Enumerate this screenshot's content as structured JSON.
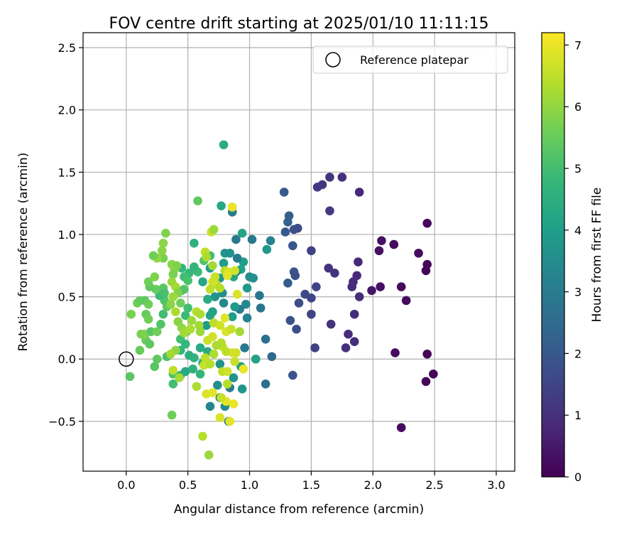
{
  "chart_data": {
    "type": "scatter",
    "title": "FOV centre drift starting at 2025/01/10 11:11:15",
    "xlabel": "Angular distance from reference (arcmin)",
    "ylabel": "Rotation from reference (arcmin)",
    "xlim": [
      -0.35,
      3.15
    ],
    "ylim": [
      -0.9,
      2.62
    ],
    "xticks": [
      0.0,
      0.5,
      1.0,
      1.5,
      2.0,
      2.5,
      3.0
    ],
    "xtick_labels": [
      "0.0",
      "0.5",
      "1.0",
      "1.5",
      "2.0",
      "2.5",
      "3.0"
    ],
    "yticks": [
      -0.5,
      0.0,
      0.5,
      1.0,
      1.5,
      2.0,
      2.5
    ],
    "ytick_labels": [
      "−0.5",
      "0.0",
      "0.5",
      "1.0",
      "1.5",
      "2.0",
      "2.5"
    ],
    "grid": true,
    "legend": {
      "placement": "top-right",
      "entries": [
        {
          "label": "Reference platepar",
          "marker": "open-circle"
        }
      ]
    },
    "reference_point": {
      "x": 0.0,
      "y": 0.0
    },
    "colorbar": {
      "label": "Hours from first FF file",
      "range": [
        0,
        7.2
      ],
      "ticks": [
        0,
        1,
        2,
        3,
        4,
        5,
        6,
        7
      ],
      "tick_labels": [
        "0",
        "1",
        "2",
        "3",
        "4",
        "5",
        "6",
        "7"
      ],
      "colormap": "viridis",
      "colormap_stops": [
        "#440154",
        "#482878",
        "#3e4989",
        "#31688e",
        "#26828e",
        "#1f9e89",
        "#35b779",
        "#6ece58",
        "#b5de2b",
        "#fde725"
      ]
    },
    "points": [
      {
        "x": 2.44,
        "y": 1.09,
        "h": 0.1
      },
      {
        "x": 2.44,
        "y": 0.76,
        "h": 0.1
      },
      {
        "x": 2.43,
        "y": 0.71,
        "h": 0.1
      },
      {
        "x": 2.37,
        "y": 0.85,
        "h": 0.2
      },
      {
        "x": 2.27,
        "y": 0.47,
        "h": 0.2
      },
      {
        "x": 2.23,
        "y": 0.58,
        "h": 0.2
      },
      {
        "x": 2.17,
        "y": 0.92,
        "h": 0.2
      },
      {
        "x": 2.07,
        "y": 0.95,
        "h": 0.3
      },
      {
        "x": 2.05,
        "y": 0.87,
        "h": 0.3
      },
      {
        "x": 2.06,
        "y": 0.58,
        "h": 0.3
      },
      {
        "x": 1.99,
        "y": 0.55,
        "h": 0.4
      },
      {
        "x": 2.18,
        "y": 0.05,
        "h": 0.2
      },
      {
        "x": 2.44,
        "y": 0.04,
        "h": 0.1
      },
      {
        "x": 2.43,
        "y": -0.18,
        "h": 0.1
      },
      {
        "x": 2.49,
        "y": -0.12,
        "h": 0.1
      },
      {
        "x": 2.23,
        "y": -0.55,
        "h": 0.2
      },
      {
        "x": 1.89,
        "y": 1.34,
        "h": 0.8
      },
      {
        "x": 1.75,
        "y": 1.46,
        "h": 1.0
      },
      {
        "x": 1.65,
        "y": 1.46,
        "h": 1.1
      },
      {
        "x": 1.59,
        "y": 1.4,
        "h": 1.2
      },
      {
        "x": 1.55,
        "y": 1.38,
        "h": 1.2
      },
      {
        "x": 1.65,
        "y": 1.19,
        "h": 1.2
      },
      {
        "x": 1.88,
        "y": 0.78,
        "h": 0.8
      },
      {
        "x": 1.87,
        "y": 0.67,
        "h": 0.8
      },
      {
        "x": 1.84,
        "y": 0.62,
        "h": 0.9
      },
      {
        "x": 1.83,
        "y": 0.58,
        "h": 0.9
      },
      {
        "x": 1.89,
        "y": 0.5,
        "h": 0.9
      },
      {
        "x": 1.64,
        "y": 0.73,
        "h": 1.1
      },
      {
        "x": 1.69,
        "y": 0.69,
        "h": 1.1
      },
      {
        "x": 1.5,
        "y": 0.87,
        "h": 1.4
      },
      {
        "x": 1.54,
        "y": 0.58,
        "h": 1.4
      },
      {
        "x": 1.5,
        "y": 0.49,
        "h": 1.5
      },
      {
        "x": 1.45,
        "y": 0.52,
        "h": 1.6
      },
      {
        "x": 1.4,
        "y": 0.45,
        "h": 1.7
      },
      {
        "x": 1.5,
        "y": 0.36,
        "h": 1.5
      },
      {
        "x": 1.85,
        "y": 0.36,
        "h": 0.9
      },
      {
        "x": 1.66,
        "y": 0.28,
        "h": 1.1
      },
      {
        "x": 1.8,
        "y": 0.2,
        "h": 0.9
      },
      {
        "x": 1.85,
        "y": 0.14,
        "h": 0.9
      },
      {
        "x": 1.78,
        "y": 0.09,
        "h": 1.0
      },
      {
        "x": 1.53,
        "y": 0.09,
        "h": 1.4
      },
      {
        "x": 1.38,
        "y": 0.24,
        "h": 1.7
      },
      {
        "x": 1.33,
        "y": 0.31,
        "h": 1.8
      },
      {
        "x": 1.35,
        "y": -0.13,
        "h": 1.9
      },
      {
        "x": 1.28,
        "y": 1.34,
        "h": 2.0
      },
      {
        "x": 1.32,
        "y": 1.15,
        "h": 2.2
      },
      {
        "x": 1.31,
        "y": 1.1,
        "h": 2.3
      },
      {
        "x": 1.36,
        "y": 1.04,
        "h": 1.8
      },
      {
        "x": 1.39,
        "y": 1.05,
        "h": 1.7
      },
      {
        "x": 1.29,
        "y": 1.02,
        "h": 2.0
      },
      {
        "x": 1.35,
        "y": 0.91,
        "h": 1.9
      },
      {
        "x": 1.36,
        "y": 0.7,
        "h": 1.9
      },
      {
        "x": 1.37,
        "y": 0.67,
        "h": 1.8
      },
      {
        "x": 1.31,
        "y": 0.61,
        "h": 2.1
      },
      {
        "x": 1.18,
        "y": 0.02,
        "h": 2.4
      },
      {
        "x": 1.13,
        "y": 0.16,
        "h": 2.6
      },
      {
        "x": 1.13,
        "y": -0.2,
        "h": 2.6
      },
      {
        "x": 1.08,
        "y": 0.51,
        "h": 2.8
      },
      {
        "x": 1.09,
        "y": 0.41,
        "h": 2.8
      },
      {
        "x": 1.02,
        "y": 0.96,
        "h": 2.9
      },
      {
        "x": 1.17,
        "y": 0.95,
        "h": 3.2
      },
      {
        "x": 1.14,
        "y": 0.88,
        "h": 3.8
      },
      {
        "x": 1.0,
        "y": 0.66,
        "h": 3.5
      },
      {
        "x": 1.03,
        "y": 0.65,
        "h": 3.6
      },
      {
        "x": 0.98,
        "y": 0.57,
        "h": 3.9
      },
      {
        "x": 0.97,
        "y": 0.44,
        "h": 3.4
      },
      {
        "x": 0.98,
        "y": 0.33,
        "h": 3.2
      },
      {
        "x": 0.95,
        "y": 0.78,
        "h": 4.0
      },
      {
        "x": 0.93,
        "y": 0.72,
        "h": 4.1
      },
      {
        "x": 0.9,
        "y": 0.81,
        "h": 3.0
      },
      {
        "x": 0.94,
        "y": 1.01,
        "h": 4.2
      },
      {
        "x": 0.89,
        "y": 0.96,
        "h": 2.9
      },
      {
        "x": 0.89,
        "y": 0.7,
        "h": 3.3
      },
      {
        "x": 0.87,
        "y": 0.66,
        "h": 4.3
      },
      {
        "x": 0.92,
        "y": 0.4,
        "h": 3.0
      },
      {
        "x": 0.88,
        "y": 0.42,
        "h": 3.9
      },
      {
        "x": 0.86,
        "y": 0.34,
        "h": 4.0
      },
      {
        "x": 0.96,
        "y": 0.09,
        "h": 2.9
      },
      {
        "x": 1.05,
        "y": 0.0,
        "h": 3.0
      },
      {
        "x": 1.05,
        "y": 0.0,
        "h": 4.2
      },
      {
        "x": 0.93,
        "y": -0.06,
        "h": 4.1
      },
      {
        "x": 0.94,
        "y": -0.24,
        "h": 3.8
      },
      {
        "x": 0.87,
        "y": -0.15,
        "h": 3.7
      },
      {
        "x": 0.84,
        "y": -0.23,
        "h": 3.0
      },
      {
        "x": 0.83,
        "y": -0.5,
        "h": 3.0
      },
      {
        "x": 0.8,
        "y": -0.38,
        "h": 3.4
      },
      {
        "x": 0.76,
        "y": -0.31,
        "h": 3.2
      },
      {
        "x": 0.68,
        "y": -0.38,
        "h": 3.3
      },
      {
        "x": 0.74,
        "y": -0.21,
        "h": 3.5
      },
      {
        "x": 0.76,
        "y": -0.04,
        "h": 3.7
      },
      {
        "x": 0.86,
        "y": 1.18,
        "h": 3.0
      },
      {
        "x": 0.86,
        "y": 1.22,
        "h": 3.4
      },
      {
        "x": 0.77,
        "y": 1.23,
        "h": 4.3
      },
      {
        "x": 0.79,
        "y": 1.72,
        "h": 4.4
      },
      {
        "x": 0.8,
        "y": 0.85,
        "h": 3.7
      },
      {
        "x": 0.84,
        "y": 0.85,
        "h": 3.6
      },
      {
        "x": 0.79,
        "y": 0.77,
        "h": 4.0
      },
      {
        "x": 0.76,
        "y": 0.65,
        "h": 3.9
      },
      {
        "x": 0.78,
        "y": 0.53,
        "h": 3.5
      },
      {
        "x": 0.72,
        "y": 0.5,
        "h": 3.7
      },
      {
        "x": 0.79,
        "y": 0.45,
        "h": 3.4
      },
      {
        "x": 0.7,
        "y": 0.38,
        "h": 4.1
      },
      {
        "x": 0.68,
        "y": 0.35,
        "h": 4.2
      },
      {
        "x": 0.65,
        "y": 0.27,
        "h": 3.9
      },
      {
        "x": 0.66,
        "y": 0.48,
        "h": 4.4
      },
      {
        "x": 0.62,
        "y": 0.62,
        "h": 4.3
      },
      {
        "x": 0.68,
        "y": 0.73,
        "h": 4.0
      },
      {
        "x": 0.68,
        "y": 0.83,
        "h": 5.0
      },
      {
        "x": 0.55,
        "y": 0.93,
        "h": 4.6
      },
      {
        "x": 0.58,
        "y": 1.27,
        "h": 5.4
      },
      {
        "x": 0.63,
        "y": 0.79,
        "h": 5.2
      },
      {
        "x": 0.58,
        "y": 0.7,
        "h": 4.9
      },
      {
        "x": 0.55,
        "y": 0.74,
        "h": 4.7
      },
      {
        "x": 0.51,
        "y": 0.69,
        "h": 4.8
      },
      {
        "x": 0.47,
        "y": 0.66,
        "h": 5.0
      },
      {
        "x": 0.45,
        "y": 0.73,
        "h": 4.8
      },
      {
        "x": 0.5,
        "y": 0.63,
        "h": 5.1
      },
      {
        "x": 0.47,
        "y": 0.56,
        "h": 5.3
      },
      {
        "x": 0.45,
        "y": 0.55,
        "h": 5.2
      },
      {
        "x": 0.44,
        "y": 0.45,
        "h": 5.6
      },
      {
        "x": 0.5,
        "y": 0.41,
        "h": 5.0
      },
      {
        "x": 0.48,
        "y": 0.35,
        "h": 4.9
      },
      {
        "x": 0.49,
        "y": 0.22,
        "h": 5.4
      },
      {
        "x": 0.44,
        "y": 0.16,
        "h": 5.0
      },
      {
        "x": 0.48,
        "y": 0.12,
        "h": 4.8
      },
      {
        "x": 0.44,
        "y": 0.07,
        "h": 4.7
      },
      {
        "x": 0.51,
        "y": 0.03,
        "h": 4.5
      },
      {
        "x": 0.55,
        "y": 0.01,
        "h": 4.6
      },
      {
        "x": 0.54,
        "y": -0.08,
        "h": 4.6
      },
      {
        "x": 0.62,
        "y": -0.03,
        "h": 4.5
      },
      {
        "x": 0.66,
        "y": 0.06,
        "h": 4.4
      },
      {
        "x": 0.6,
        "y": 0.09,
        "h": 4.4
      },
      {
        "x": 0.6,
        "y": -0.12,
        "h": 4.7
      },
      {
        "x": 0.48,
        "y": -0.1,
        "h": 4.3
      },
      {
        "x": 0.44,
        "y": -0.13,
        "h": 4.5
      },
      {
        "x": 0.38,
        "y": -0.2,
        "h": 5.0
      },
      {
        "x": 0.38,
        "y": -0.12,
        "h": 5.1
      },
      {
        "x": 0.37,
        "y": -0.45,
        "h": 5.6
      },
      {
        "x": 0.33,
        "y": 0.02,
        "h": 5.1
      },
      {
        "x": 0.25,
        "y": 0.0,
        "h": 5.4
      },
      {
        "x": 0.23,
        "y": -0.06,
        "h": 5.3
      },
      {
        "x": 0.11,
        "y": 0.07,
        "h": 5.5
      },
      {
        "x": 0.03,
        "y": -0.14,
        "h": 5.3
      },
      {
        "x": 0.04,
        "y": 0.36,
        "h": 5.7
      },
      {
        "x": 0.09,
        "y": 0.45,
        "h": 5.6
      },
      {
        "x": 0.11,
        "y": 0.47,
        "h": 5.5
      },
      {
        "x": 0.15,
        "y": 0.47,
        "h": 5.4
      },
      {
        "x": 0.18,
        "y": 0.44,
        "h": 5.6
      },
      {
        "x": 0.16,
        "y": 0.36,
        "h": 5.5
      },
      {
        "x": 0.18,
        "y": 0.32,
        "h": 5.6
      },
      {
        "x": 0.12,
        "y": 0.2,
        "h": 5.7
      },
      {
        "x": 0.16,
        "y": 0.15,
        "h": 5.5
      },
      {
        "x": 0.19,
        "y": 0.12,
        "h": 5.4
      },
      {
        "x": 0.15,
        "y": 0.2,
        "h": 5.8
      },
      {
        "x": 0.2,
        "y": 0.22,
        "h": 5.3
      },
      {
        "x": 0.25,
        "y": 0.22,
        "h": 5.6
      },
      {
        "x": 0.28,
        "y": 0.28,
        "h": 5.2
      },
      {
        "x": 0.3,
        "y": 0.36,
        "h": 5.0
      },
      {
        "x": 0.33,
        "y": 0.42,
        "h": 5.4
      },
      {
        "x": 0.31,
        "y": 0.47,
        "h": 5.2
      },
      {
        "x": 0.27,
        "y": 0.51,
        "h": 4.9
      },
      {
        "x": 0.24,
        "y": 0.56,
        "h": 5.5
      },
      {
        "x": 0.3,
        "y": 0.57,
        "h": 5.3
      },
      {
        "x": 0.31,
        "y": 0.53,
        "h": 5.1
      },
      {
        "x": 0.19,
        "y": 0.58,
        "h": 5.4
      },
      {
        "x": 0.18,
        "y": 0.62,
        "h": 5.6
      },
      {
        "x": 0.23,
        "y": 0.66,
        "h": 5.8
      },
      {
        "x": 0.3,
        "y": 0.81,
        "h": 5.7
      },
      {
        "x": 0.29,
        "y": 0.87,
        "h": 5.9
      },
      {
        "x": 0.25,
        "y": 0.81,
        "h": 6.0
      },
      {
        "x": 0.32,
        "y": 1.01,
        "h": 5.8
      },
      {
        "x": 0.3,
        "y": 0.93,
        "h": 5.9
      },
      {
        "x": 0.22,
        "y": 0.83,
        "h": 5.6
      },
      {
        "x": 0.37,
        "y": 0.76,
        "h": 5.9
      },
      {
        "x": 0.39,
        "y": 0.72,
        "h": 6.0
      },
      {
        "x": 0.41,
        "y": 0.75,
        "h": 5.8
      },
      {
        "x": 0.38,
        "y": 0.68,
        "h": 5.7
      },
      {
        "x": 0.37,
        "y": 0.62,
        "h": 6.1
      },
      {
        "x": 0.4,
        "y": 0.58,
        "h": 6.2
      },
      {
        "x": 0.42,
        "y": 0.53,
        "h": 5.8
      },
      {
        "x": 0.38,
        "y": 0.5,
        "h": 6.1
      },
      {
        "x": 0.36,
        "y": 0.44,
        "h": 5.9
      },
      {
        "x": 0.4,
        "y": 0.38,
        "h": 6.3
      },
      {
        "x": 0.42,
        "y": 0.3,
        "h": 5.9
      },
      {
        "x": 0.45,
        "y": 0.25,
        "h": 6.0
      },
      {
        "x": 0.47,
        "y": 0.21,
        "h": 6.2
      },
      {
        "x": 0.52,
        "y": 0.24,
        "h": 6.3
      },
      {
        "x": 0.53,
        "y": 0.31,
        "h": 6.1
      },
      {
        "x": 0.57,
        "y": 0.38,
        "h": 6.4
      },
      {
        "x": 0.6,
        "y": 0.36,
        "h": 6.3
      },
      {
        "x": 0.59,
        "y": 0.27,
        "h": 6.2
      },
      {
        "x": 0.6,
        "y": 0.22,
        "h": 6.1
      },
      {
        "x": 0.4,
        "y": 0.07,
        "h": 6.0
      },
      {
        "x": 0.36,
        "y": 0.04,
        "h": 6.2
      },
      {
        "x": 0.43,
        "y": -0.15,
        "h": 6.2
      },
      {
        "x": 0.38,
        "y": -0.09,
        "h": 6.5
      },
      {
        "x": 0.57,
        "y": -0.22,
        "h": 6.3
      },
      {
        "x": 0.62,
        "y": -0.62,
        "h": 6.4
      },
      {
        "x": 0.67,
        "y": -0.77,
        "h": 6.1
      },
      {
        "x": 0.65,
        "y": -0.28,
        "h": 6.8
      },
      {
        "x": 0.7,
        "y": -0.27,
        "h": 6.9
      },
      {
        "x": 0.63,
        "y": -0.05,
        "h": 6.6
      },
      {
        "x": 0.68,
        "y": -0.04,
        "h": 6.4
      },
      {
        "x": 0.64,
        "y": 0.01,
        "h": 6.5
      },
      {
        "x": 0.66,
        "y": 0.15,
        "h": 6.6
      },
      {
        "x": 0.7,
        "y": 0.18,
        "h": 6.7
      },
      {
        "x": 0.71,
        "y": 0.29,
        "h": 6.5
      },
      {
        "x": 0.76,
        "y": 0.27,
        "h": 6.7
      },
      {
        "x": 0.8,
        "y": 0.33,
        "h": 6.9
      },
      {
        "x": 0.81,
        "y": 0.22,
        "h": 6.8
      },
      {
        "x": 0.85,
        "y": 0.24,
        "h": 6.6
      },
      {
        "x": 0.78,
        "y": 0.1,
        "h": 6.5
      },
      {
        "x": 0.86,
        "y": 0.05,
        "h": 6.8
      },
      {
        "x": 0.89,
        "y": 0.05,
        "h": 6.7
      },
      {
        "x": 0.88,
        "y": -0.02,
        "h": 6.6
      },
      {
        "x": 0.77,
        "y": 0.13,
        "h": 6.4
      },
      {
        "x": 0.81,
        "y": 0.06,
        "h": 6.5
      },
      {
        "x": 0.73,
        "y": 0.11,
        "h": 6.3
      },
      {
        "x": 0.71,
        "y": 0.04,
        "h": 6.3
      },
      {
        "x": 0.78,
        "y": -0.1,
        "h": 6.5
      },
      {
        "x": 0.82,
        "y": -0.1,
        "h": 6.7
      },
      {
        "x": 0.82,
        "y": -0.2,
        "h": 6.4
      },
      {
        "x": 0.92,
        "y": 0.22,
        "h": 6.2
      },
      {
        "x": 0.9,
        "y": 0.52,
        "h": 6.8
      },
      {
        "x": 0.8,
        "y": 0.71,
        "h": 6.4
      },
      {
        "x": 0.73,
        "y": 0.6,
        "h": 6.5
      },
      {
        "x": 0.72,
        "y": 0.66,
        "h": 6.6
      },
      {
        "x": 0.7,
        "y": 0.62,
        "h": 6.7
      },
      {
        "x": 0.68,
        "y": 0.56,
        "h": 6.5
      },
      {
        "x": 0.76,
        "y": 0.57,
        "h": 6.4
      },
      {
        "x": 0.7,
        "y": 0.75,
        "h": 6.2
      },
      {
        "x": 0.83,
        "y": 0.7,
        "h": 6.8
      },
      {
        "x": 0.82,
        "y": 0.67,
        "h": 6.9
      },
      {
        "x": 0.88,
        "y": 0.71,
        "h": 6.7
      },
      {
        "x": 0.64,
        "y": 0.86,
        "h": 6.5
      },
      {
        "x": 0.65,
        "y": 0.82,
        "h": 6.3
      },
      {
        "x": 0.69,
        "y": 1.02,
        "h": 6.6
      },
      {
        "x": 0.71,
        "y": 1.04,
        "h": 6.1
      },
      {
        "x": 0.86,
        "y": 1.22,
        "h": 7.0
      },
      {
        "x": 0.81,
        "y": -0.34,
        "h": 6.9
      },
      {
        "x": 0.87,
        "y": -0.36,
        "h": 7.0
      },
      {
        "x": 0.76,
        "y": -0.47,
        "h": 6.8
      },
      {
        "x": 0.84,
        "y": -0.5,
        "h": 6.9
      },
      {
        "x": 0.95,
        "y": -0.08,
        "h": 7.0
      },
      {
        "x": 0.77,
        "y": -0.31,
        "h": 6.6
      }
    ]
  }
}
